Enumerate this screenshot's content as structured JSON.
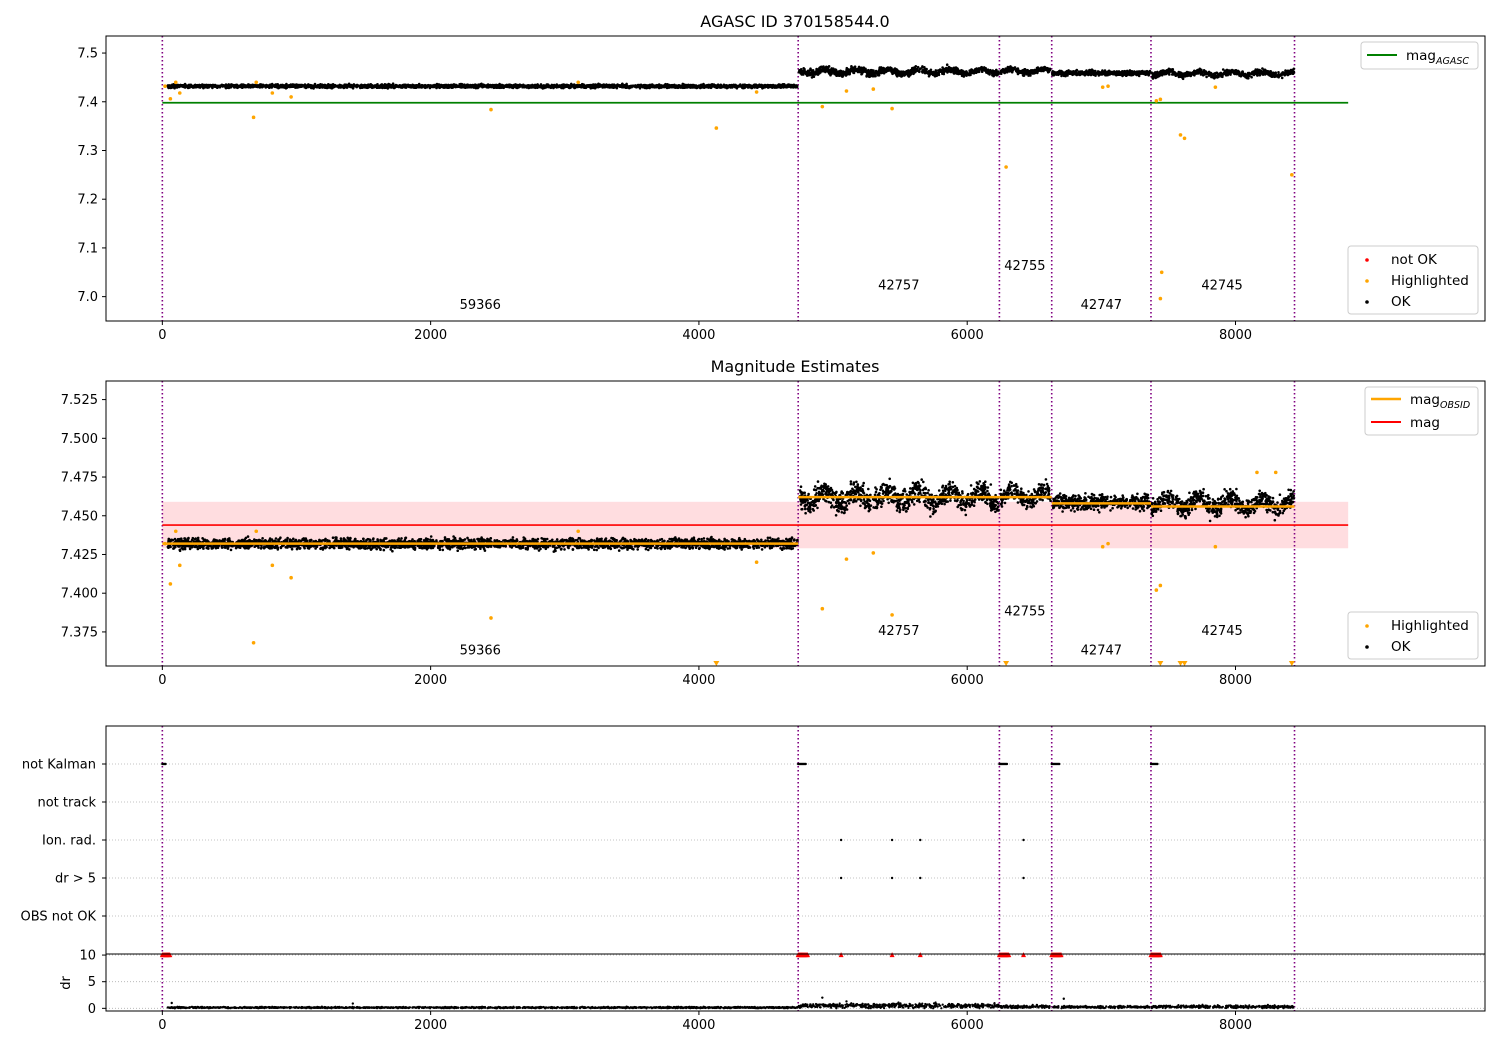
{
  "figure": {
    "title": "AGASC ID 370158544.0"
  },
  "colors": {
    "ok": "#000000",
    "highlighted": "#ffa500",
    "not_ok": "#ff0000",
    "mag_agasc": "#008000",
    "mag_obsid": "#ffa500",
    "mag": "#ff0000",
    "mag_band": "#ffdde0",
    "obsid_line": "#800080"
  },
  "obsid_boundaries": [
    0,
    4740,
    6240,
    6630,
    7370,
    8440
  ],
  "chart_data": [
    {
      "type": "scatter",
      "name": "top",
      "title": "AGASC ID 370158544.0",
      "xlim": [
        -420,
        9860
      ],
      "ylim": [
        6.95,
        7.535
      ],
      "xticks": [
        0,
        2000,
        4000,
        6000,
        8000
      ],
      "yticks": [
        7.0,
        7.1,
        7.2,
        7.3,
        7.4,
        7.5
      ],
      "ytick_labels": [
        "7.0",
        "7.1",
        "7.2",
        "7.3",
        "7.4",
        "7.5"
      ],
      "reference_lines": [
        {
          "label": "mag_AGASC",
          "y": 7.398,
          "x": [
            0,
            8840
          ]
        }
      ],
      "segments": [
        {
          "x": [
            40,
            4735
          ],
          "mag": 7.432,
          "noise": 0.0035
        },
        {
          "x": [
            4745,
            6235
          ],
          "mag": 7.462,
          "noise": 0.007
        },
        {
          "x": [
            6245,
            6625
          ],
          "mag": 7.463,
          "noise": 0.006
        },
        {
          "x": [
            6635,
            7365
          ],
          "mag": 7.459,
          "noise": 0.005
        },
        {
          "x": [
            7375,
            8435
          ],
          "mag": 7.458,
          "noise": 0.006
        }
      ],
      "highlighted_points": [
        [
          20,
          7.432
        ],
        [
          60,
          7.406
        ],
        [
          100,
          7.44
        ],
        [
          130,
          7.418
        ],
        [
          680,
          7.368
        ],
        [
          700,
          7.44
        ],
        [
          820,
          7.418
        ],
        [
          960,
          7.41
        ],
        [
          2450,
          7.384
        ],
        [
          3100,
          7.44
        ],
        [
          4130,
          7.346
        ],
        [
          4430,
          7.42
        ],
        [
          4920,
          7.39
        ],
        [
          5100,
          7.422
        ],
        [
          5300,
          7.426
        ],
        [
          5440,
          7.386
        ],
        [
          6290,
          7.266
        ],
        [
          7010,
          7.43
        ],
        [
          7050,
          7.432
        ],
        [
          7410,
          7.402
        ],
        [
          7440,
          7.405
        ],
        [
          7590,
          7.332
        ],
        [
          7620,
          7.325
        ],
        [
          7850,
          7.43
        ],
        [
          8420,
          7.25
        ],
        [
          7450,
          7.05
        ],
        [
          7440,
          6.996
        ]
      ],
      "not_ok_points": [],
      "obsid_labels": [
        {
          "text": "59366",
          "x": 2370,
          "y": 6.975
        },
        {
          "text": "42757",
          "x": 5490,
          "y": 7.015
        },
        {
          "text": "42755",
          "x": 6430,
          "y": 7.055
        },
        {
          "text": "42747",
          "x": 7000,
          "y": 6.975
        },
        {
          "text": "42745",
          "x": 7900,
          "y": 7.015
        }
      ],
      "legend_upper": [
        {
          "label_main": "mag",
          "label_sub": "AGASC",
          "marker": "line",
          "color": "#008000"
        }
      ],
      "legend_lower": [
        {
          "label": "not OK",
          "marker": "dot",
          "color": "#ff0000"
        },
        {
          "label": "Highlighted",
          "marker": "dot",
          "color": "#ffa500"
        },
        {
          "label": "OK",
          "marker": "dot",
          "color": "#000000"
        }
      ]
    },
    {
      "type": "scatter",
      "name": "middle",
      "title": "Magnitude Estimates",
      "xlim": [
        -420,
        9860
      ],
      "ylim": [
        7.353,
        7.537
      ],
      "xticks": [
        0,
        2000,
        4000,
        6000,
        8000
      ],
      "yticks": [
        7.375,
        7.4,
        7.425,
        7.45,
        7.475,
        7.5,
        7.525
      ],
      "ytick_labels": [
        "7.375",
        "7.400",
        "7.425",
        "7.450",
        "7.475",
        "7.500",
        "7.525"
      ],
      "mag": {
        "value": 7.444,
        "band": [
          7.429,
          7.459
        ],
        "x": [
          0,
          8840
        ]
      },
      "mag_obsid": [
        {
          "x": [
            0,
            4740
          ],
          "y": 7.432
        },
        {
          "x": [
            4740,
            6240
          ],
          "y": 7.462
        },
        {
          "x": [
            6240,
            6630
          ],
          "y": 7.462
        },
        {
          "x": [
            6630,
            7370
          ],
          "y": 7.458
        },
        {
          "x": [
            7370,
            8440
          ],
          "y": 7.456
        }
      ],
      "segments": [
        {
          "x": [
            40,
            4735
          ],
          "mag": 7.432,
          "noise": 0.0035
        },
        {
          "x": [
            4745,
            6235
          ],
          "mag": 7.462,
          "noise": 0.007
        },
        {
          "x": [
            6245,
            6625
          ],
          "mag": 7.463,
          "noise": 0.006
        },
        {
          "x": [
            6635,
            7365
          ],
          "mag": 7.459,
          "noise": 0.005
        },
        {
          "x": [
            7375,
            8435
          ],
          "mag": 7.458,
          "noise": 0.006
        }
      ],
      "highlighted_points": [
        [
          20,
          7.432
        ],
        [
          60,
          7.406
        ],
        [
          100,
          7.44
        ],
        [
          130,
          7.418
        ],
        [
          680,
          7.368
        ],
        [
          700,
          7.44
        ],
        [
          820,
          7.418
        ],
        [
          960,
          7.41
        ],
        [
          2450,
          7.384
        ],
        [
          3100,
          7.44
        ],
        [
          4430,
          7.42
        ],
        [
          4920,
          7.39
        ],
        [
          5100,
          7.422
        ],
        [
          5300,
          7.426
        ],
        [
          5440,
          7.386
        ],
        [
          7010,
          7.43
        ],
        [
          7050,
          7.432
        ],
        [
          7410,
          7.402
        ],
        [
          7440,
          7.405
        ],
        [
          7850,
          7.43
        ],
        [
          8160,
          7.478
        ],
        [
          8300,
          7.478
        ]
      ],
      "offscale_markers_x": [
        4130,
        6290,
        7440,
        7590,
        7620,
        8420
      ],
      "obsid_labels": [
        {
          "text": "59366",
          "x": 2370,
          "y": 7.3605
        },
        {
          "text": "42757",
          "x": 5490,
          "y": 7.373
        },
        {
          "text": "42755",
          "x": 6430,
          "y": 7.3855
        },
        {
          "text": "42747",
          "x": 7000,
          "y": 7.3605
        },
        {
          "text": "42745",
          "x": 7900,
          "y": 7.373
        }
      ],
      "legend_upper": [
        {
          "label_main": "mag",
          "label_sub": "OBSID",
          "marker": "line",
          "color": "#ffa500"
        },
        {
          "label_main": "mag",
          "label_sub": "",
          "marker": "line",
          "color": "#ff0000"
        }
      ],
      "legend_lower": [
        {
          "label": "Highlighted",
          "marker": "dot",
          "color": "#ffa500"
        },
        {
          "label": "OK",
          "marker": "dot",
          "color": "#000000"
        }
      ]
    },
    {
      "type": "scatter",
      "name": "flags",
      "xlim": [
        -420,
        9860
      ],
      "categories": [
        "not Kalman",
        "not track",
        "Ion. rad.",
        "dr > 5",
        "OBS not OK"
      ],
      "flag_points": {
        "not Kalman": [
          [
            0,
            30
          ],
          [
            4740,
            4800
          ],
          [
            6240,
            6300
          ],
          [
            6630,
            6690
          ],
          [
            7370,
            7420
          ]
        ],
        "not track": [],
        "Ion. rad.": [
          [
            5060,
            5060
          ],
          [
            5440,
            5440
          ],
          [
            5650,
            5650
          ],
          [
            6420,
            6420
          ]
        ],
        "dr > 5": [
          [
            5060,
            5060
          ],
          [
            5440,
            5440
          ],
          [
            5650,
            5650
          ],
          [
            6420,
            6420
          ]
        ],
        "OBS not OK": []
      }
    },
    {
      "type": "scatter",
      "name": "dr",
      "ylabel": "dr",
      "xlim": [
        -420,
        9860
      ],
      "ylim": [
        -0.5,
        10.2
      ],
      "xticks": [
        0,
        2000,
        4000,
        6000,
        8000
      ],
      "yticks": [
        0,
        5,
        10
      ],
      "dr_segments": [
        {
          "x": [
            40,
            4735
          ],
          "level": 0.15
        },
        {
          "x": [
            4745,
            6235
          ],
          "level": 0.5
        },
        {
          "x": [
            6245,
            6625
          ],
          "level": 0.3
        },
        {
          "x": [
            6635,
            7365
          ],
          "level": 0.25
        },
        {
          "x": [
            7375,
            8435
          ],
          "level": 0.3
        }
      ],
      "dr_outliers": [
        [
          70,
          1.0
        ],
        [
          1420,
          0.9
        ],
        [
          4920,
          2.0
        ],
        [
          5100,
          1.3
        ],
        [
          6720,
          1.8
        ]
      ],
      "clipped_ranges": [
        [
          0,
          60
        ],
        [
          4740,
          4810
        ],
        [
          6240,
          6310
        ],
        [
          6630,
          6700
        ],
        [
          7370,
          7440
        ]
      ],
      "clipped_points_x": [
        5060,
        5440,
        5650,
        6420
      ]
    }
  ]
}
